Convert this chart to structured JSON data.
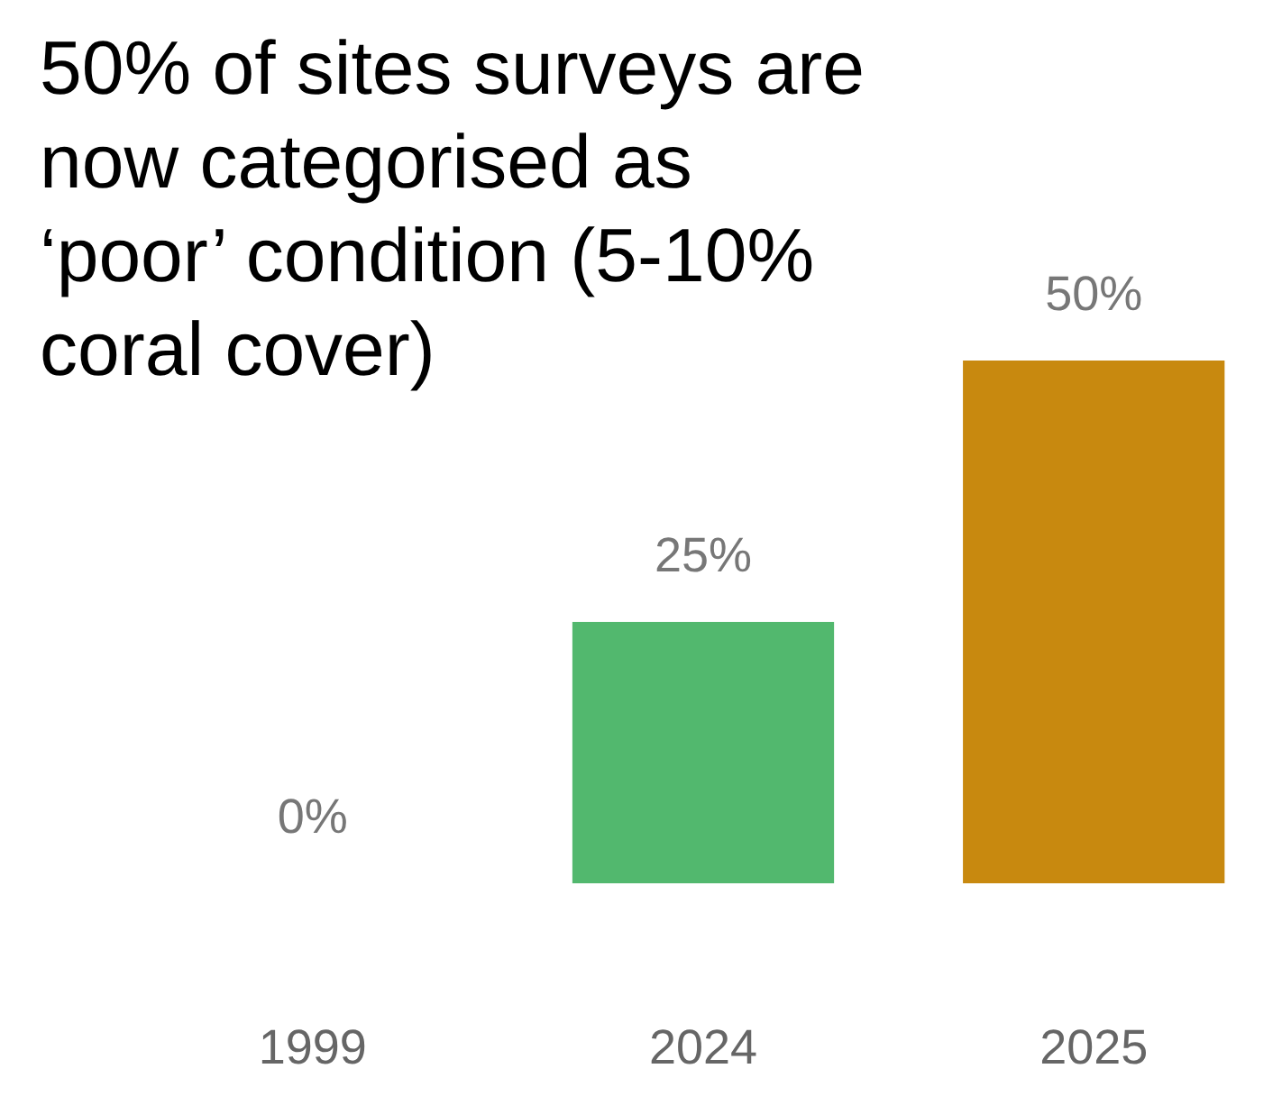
{
  "chart_data": {
    "type": "bar",
    "title": "50% of sites surveys are now categorised as ‘poor’ condition (5-10% coral cover)",
    "categories": [
      "1999",
      "2024",
      "2025"
    ],
    "values": [
      0,
      25,
      50
    ],
    "colors": [
      "#5aabd6",
      "#52b86e",
      "#c8890f"
    ],
    "value_labels": [
      "0%",
      "25%",
      "50%"
    ]
  }
}
